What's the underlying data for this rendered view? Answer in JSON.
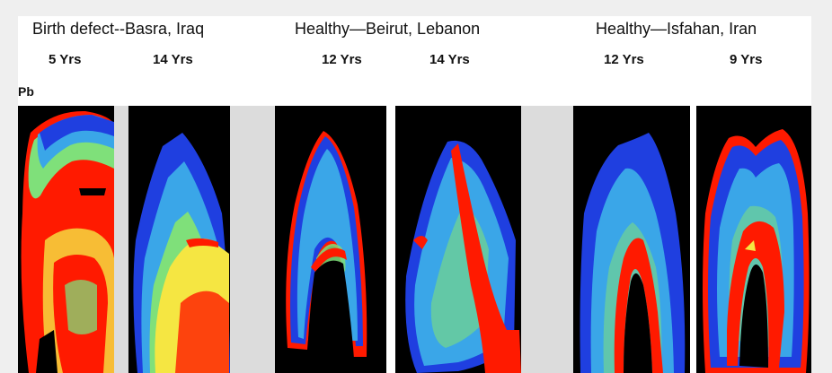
{
  "groups": [
    {
      "label": "Birth defect--Basra, Iraq",
      "ages": [
        "5 Yrs",
        "14 Yrs"
      ]
    },
    {
      "label": "Healthy—Beirut, Lebanon",
      "ages": [
        "12 Yrs",
        "14 Yrs"
      ]
    },
    {
      "label": "Healthy—Isfahan, Iran",
      "ages": [
        "12  Yrs",
        "9 Yrs"
      ]
    }
  ],
  "element_label": "Pb",
  "colors": {
    "background": "#000000",
    "low": "#1f3fe0",
    "mid_low": "#3aa6e8",
    "mid": "#7fe07a",
    "mid_high": "#f5e642",
    "high": "#ff1a00",
    "separator": "#dcdcdc"
  }
}
